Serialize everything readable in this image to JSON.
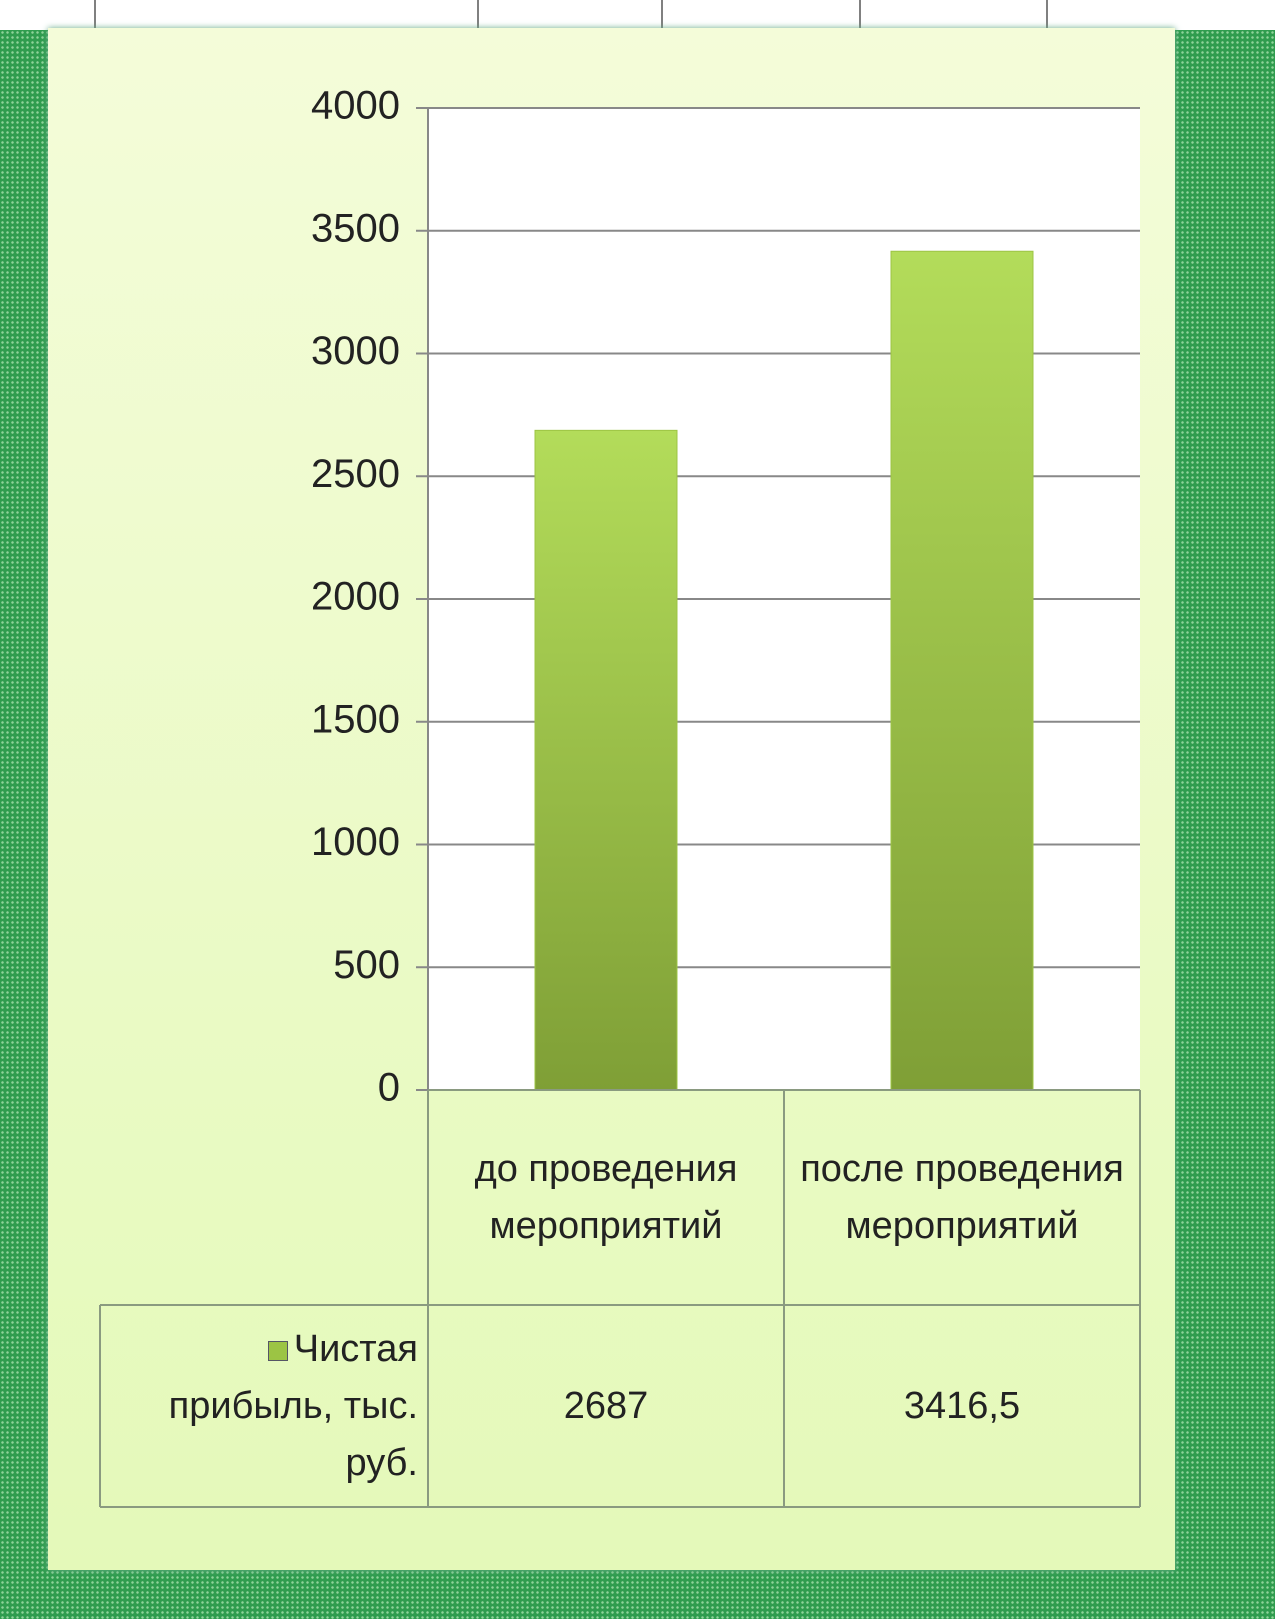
{
  "chart_data": {
    "type": "bar",
    "categories": [
      "до проведения мероприятий",
      "после проведения мероприятий"
    ],
    "series": [
      {
        "name": "Чистая прибыль, тыс. руб.",
        "color": "#9cc444",
        "values": [
          2687,
          3416.5
        ],
        "value_labels": [
          "2687",
          "3416,5"
        ]
      }
    ],
    "ylim": [
      0,
      4000
    ],
    "yticks": [
      0,
      500,
      1000,
      1500,
      2000,
      2500,
      3000,
      3500,
      4000
    ],
    "grid": true,
    "data_table": true
  }
}
